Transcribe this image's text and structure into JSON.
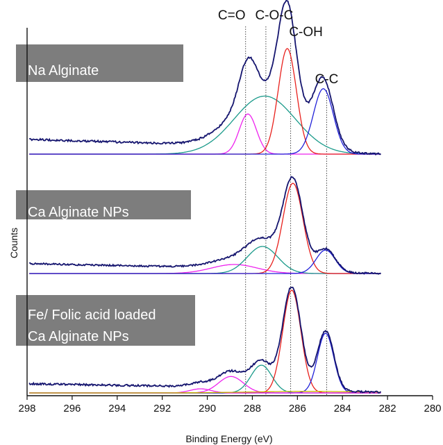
{
  "chart_data": {
    "type": "line",
    "xlabel": "Binding Energy (eV)",
    "ylabel": "Counts",
    "xlim": [
      298,
      280
    ],
    "x_reversed": true,
    "x_ticks": [
      298,
      296,
      294,
      292,
      290,
      288,
      286,
      284,
      282,
      280
    ],
    "peak_markers": [
      {
        "label": "C=O",
        "x": 288.3
      },
      {
        "label": "C-O-C",
        "x": 287.4
      },
      {
        "label": "C-OH",
        "x": 286.3
      },
      {
        "label": "C-C",
        "x": 284.7
      }
    ],
    "panels": [
      {
        "name": "Na Alginate",
        "label_lines": [
          "Na Alginate"
        ],
        "data_range": [
          282.3,
          297.9
        ],
        "baseline_left": 0.1,
        "baseline_right": 0.0,
        "baseline_step": 0.04,
        "step_center": 288.0,
        "components": [
          {
            "name": "C=O",
            "color": "#ee22ee",
            "center": 288.2,
            "fwhm": 0.9,
            "height": 0.38
          },
          {
            "name": "C-O-C",
            "color": "#1a9a8a",
            "center": 287.45,
            "fwhm": 3.2,
            "height": 0.55
          },
          {
            "name": "C-OH",
            "color": "#e8201c",
            "center": 286.45,
            "fwhm": 0.95,
            "height": 1.0
          },
          {
            "name": "C-C",
            "color": "#2020d8",
            "center": 284.85,
            "fwhm": 1.05,
            "height": 0.62
          }
        ],
        "envelope_color": "#14146e"
      },
      {
        "name": "Ca Alginate NPs",
        "label_lines": [
          "Ca Alginate NPs"
        ],
        "data_range": [
          282.3,
          297.9
        ],
        "baseline_left": 0.08,
        "baseline_right": 0.0,
        "baseline_step": 0.03,
        "step_center": 288.0,
        "components": [
          {
            "name": "C=O",
            "color": "#ee22ee",
            "center": 288.8,
            "fwhm": 2.4,
            "height": 0.1
          },
          {
            "name": "C-O-C",
            "color": "#1a9a8a",
            "center": 287.55,
            "fwhm": 1.6,
            "height": 0.3
          },
          {
            "name": "C-OH",
            "color": "#e8201c",
            "center": 286.2,
            "fwhm": 1.05,
            "height": 1.0
          },
          {
            "name": "C-C",
            "color": "#2020d8",
            "center": 284.75,
            "fwhm": 1.0,
            "height": 0.26
          }
        ],
        "envelope_color": "#14146e"
      },
      {
        "name": "Fe/ Folic acid loaded Ca Alginate NPs",
        "label_lines": [
          "Fe/ Folic acid loaded",
          "Ca Alginate NPs"
        ],
        "data_range": [
          282.3,
          297.9
        ],
        "baseline_left": 0.06,
        "baseline_right": 0.0,
        "baseline_step": 0.03,
        "step_center": 288.5,
        "components": [
          {
            "name": "C=O",
            "color": "#ee22ee",
            "center": 288.95,
            "fwhm": 1.3,
            "height": 0.16
          },
          {
            "name": "C-O-C",
            "color": "#1a9a8a",
            "center": 287.6,
            "fwhm": 1.1,
            "height": 0.27
          },
          {
            "name": "C-OH",
            "color": "#e8201c",
            "center": 286.25,
            "fwhm": 0.95,
            "height": 1.0
          },
          {
            "name": "C-C",
            "color": "#2020d8",
            "center": 284.75,
            "fwhm": 0.85,
            "height": 0.58
          },
          {
            "name": "extra-1",
            "color": "#ee22ee",
            "center": 290.3,
            "fwhm": 1.1,
            "height": 0.04
          },
          {
            "name": "extra-2",
            "color": "#c8b400",
            "center": 285.5,
            "fwhm": 6.0,
            "height": 0.015
          }
        ],
        "envelope_color": "#14146e"
      }
    ]
  }
}
